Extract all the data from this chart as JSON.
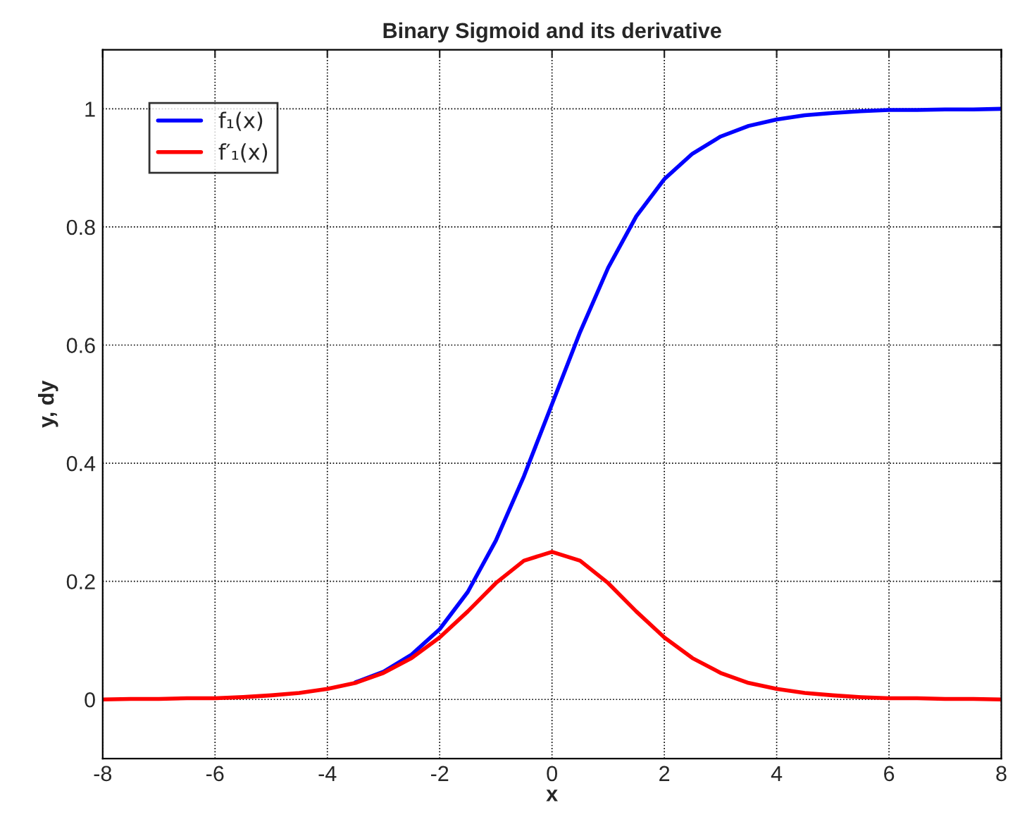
{
  "chart_data": {
    "type": "line",
    "title": "Binary Sigmoid and its derivative",
    "xlabel": "x",
    "ylabel": "y, dy",
    "x": [
      -8,
      -7.5,
      -7,
      -6.5,
      -6,
      -5.5,
      -5,
      -4.5,
      -4,
      -3.5,
      -3,
      -2.5,
      -2,
      -1.5,
      -1,
      -0.5,
      0,
      0.5,
      1,
      1.5,
      2,
      2.5,
      3,
      3.5,
      4,
      4.5,
      5,
      5.5,
      6,
      6.5,
      7,
      7.5,
      8
    ],
    "series": [
      {
        "name": "f₁(x)",
        "color": "#0000ff",
        "values": [
          null,
          null,
          null,
          null,
          null,
          null,
          null,
          null,
          null,
          0.029,
          0.047,
          0.076,
          0.119,
          0.182,
          0.269,
          0.378,
          0.5,
          0.622,
          0.731,
          0.818,
          0.881,
          0.924,
          0.953,
          0.971,
          0.982,
          0.989,
          0.993,
          0.996,
          0.998,
          0.998,
          0.999,
          0.999,
          1.0
        ]
      },
      {
        "name": "f′₁(x)",
        "color": "#ff0000",
        "values": [
          0.0,
          0.001,
          0.001,
          0.002,
          0.002,
          0.004,
          0.007,
          0.011,
          0.018,
          0.028,
          0.045,
          0.07,
          0.105,
          0.149,
          0.197,
          0.235,
          0.25,
          0.235,
          0.197,
          0.149,
          0.105,
          0.07,
          0.045,
          0.028,
          0.018,
          0.011,
          0.007,
          0.004,
          0.002,
          0.002,
          0.001,
          0.001,
          0.0
        ]
      }
    ],
    "xlim": [
      -8,
      8
    ],
    "xticks": [
      -8,
      -6,
      -4,
      -2,
      0,
      2,
      4,
      6,
      8
    ],
    "ylim": [
      -0.1,
      1.1
    ],
    "yticks": [
      0,
      0.2,
      0.4,
      0.6,
      0.8,
      1
    ],
    "grid": true,
    "legend": "top left",
    "line_style": "solid",
    "marker": "none"
  }
}
